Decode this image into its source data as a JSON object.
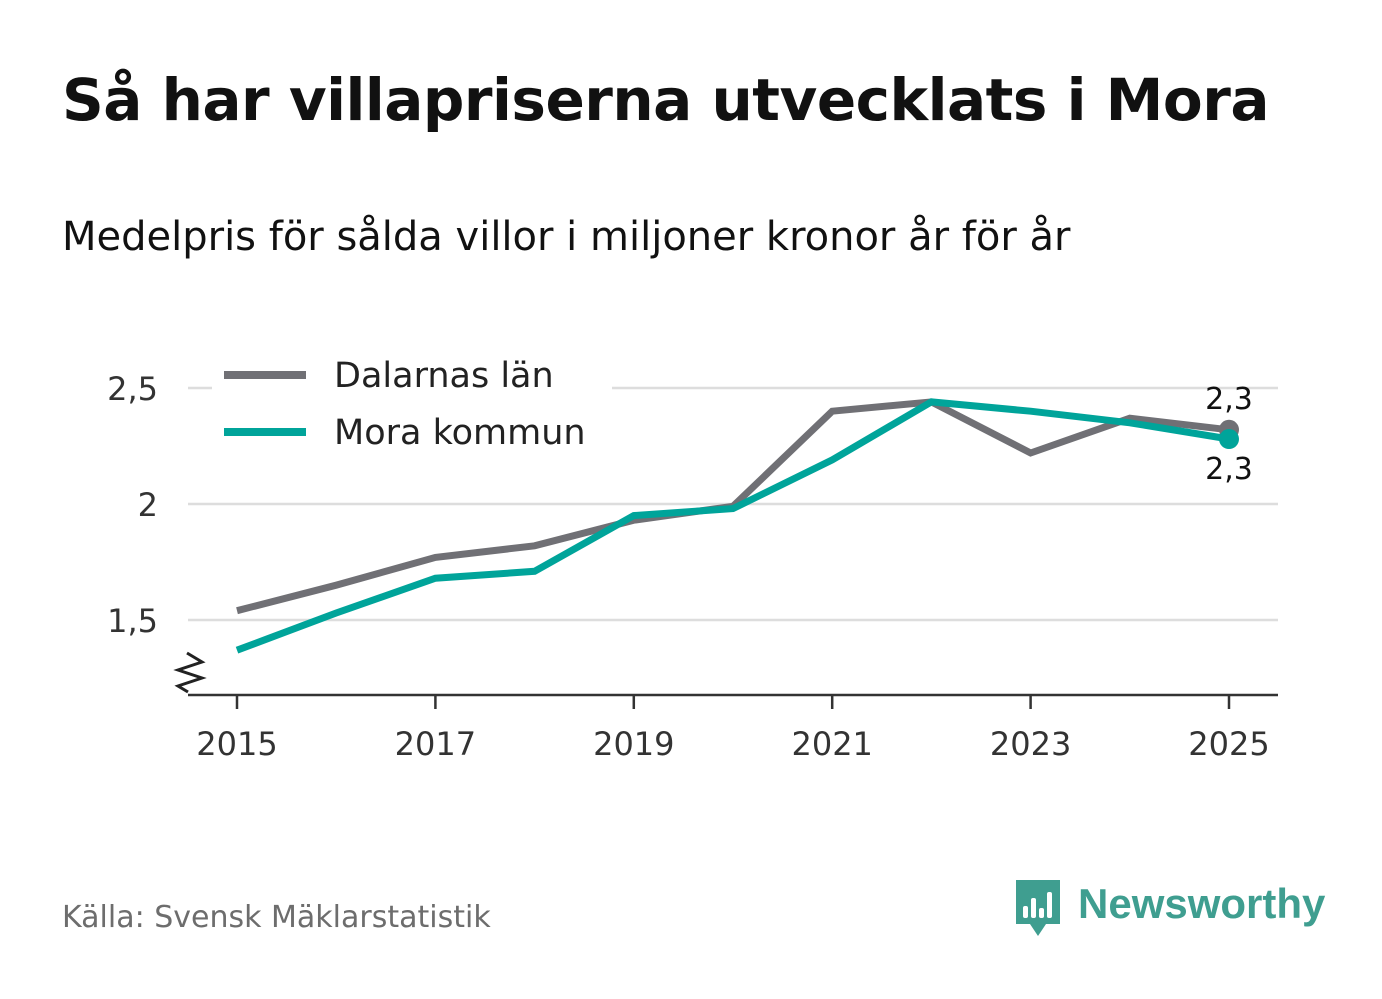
{
  "title": "Så har villapriserna utvecklats i Mora",
  "subtitle": "Medelpris för sålda villor i miljoner kronor år för år",
  "source": "Källa: Svensk Mäklarstatistik",
  "brand": {
    "name": "Newsworthy",
    "icon": "newsworthy-logo-icon",
    "color": "#3f9e90"
  },
  "chart_data": {
    "type": "line",
    "title": "Så har villapriserna utvecklats i Mora",
    "subtitle": "Medelpris för sålda villor i miljoner kronor år för år",
    "xlabel": "",
    "ylabel": "",
    "x": [
      2015,
      2016,
      2017,
      2018,
      2019,
      2020,
      2021,
      2022,
      2023,
      2024,
      2025
    ],
    "xticks": [
      2015,
      2017,
      2019,
      2021,
      2023,
      2025
    ],
    "xtick_labels": [
      "2015",
      "2017",
      "2019",
      "2021",
      "2023",
      "2025"
    ],
    "yticks": [
      1.5,
      2,
      2.5
    ],
    "ytick_labels": [
      "1,5",
      "2",
      "2,5"
    ],
    "ylim": [
      1.17,
      2.55
    ],
    "grid": true,
    "broken_axis": true,
    "legend_position": "top-left",
    "series": [
      {
        "name": "Dalarnas län",
        "color": "#707075",
        "values": [
          1.54,
          1.65,
          1.77,
          1.82,
          1.93,
          1.99,
          2.4,
          2.44,
          2.22,
          2.37,
          2.32
        ],
        "end_label": "2,3"
      },
      {
        "name": "Mora kommun",
        "color": "#00a49a",
        "values": [
          1.37,
          1.53,
          1.68,
          1.71,
          1.95,
          1.98,
          2.19,
          2.44,
          2.4,
          2.35,
          2.28
        ],
        "end_label": "2,3"
      }
    ]
  }
}
